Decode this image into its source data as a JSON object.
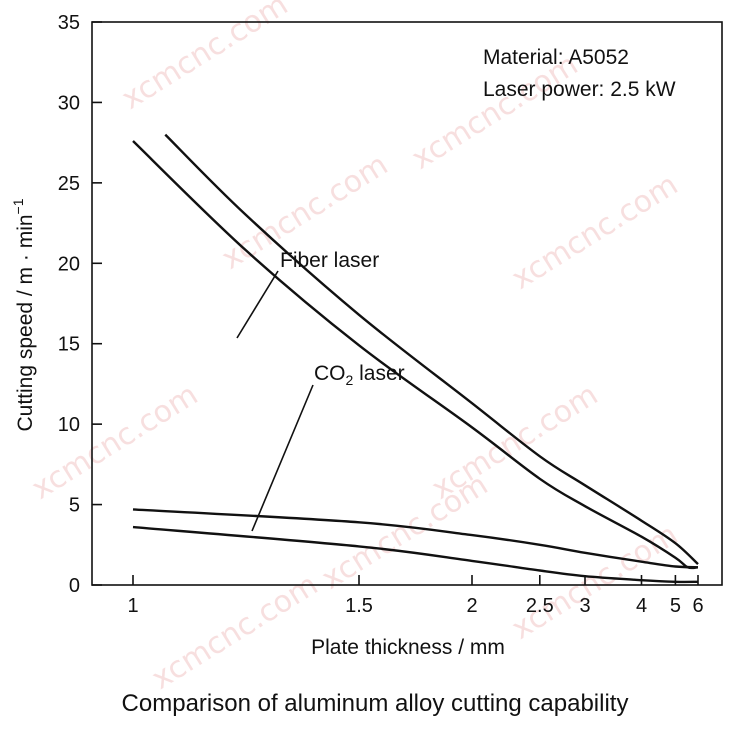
{
  "chart_data": {
    "type": "line",
    "title": "Comparison of aluminum alloy cutting capability",
    "xlabel": "Plate thickness / mm",
    "ylabel_main": "Cutting speed / m · min",
    "ylabel_sup": "−1",
    "x_tick_labels": [
      "1",
      "1.5",
      "2",
      "2.5",
      "3",
      "4",
      "5",
      "6"
    ],
    "x_tick_values": [
      1,
      1.5,
      2,
      2.5,
      3,
      4,
      5,
      6
    ],
    "x_scale": "reciprocal",
    "y_tick_labels": [
      "0",
      "5",
      "10",
      "15",
      "20",
      "25",
      "30",
      "35"
    ],
    "ylim": [
      0,
      35
    ],
    "grid": false,
    "annotations": {
      "material": "Material:  A5052",
      "power": "Laser power:  2.5 kW"
    },
    "series": [
      {
        "name": "Fiber laser",
        "label_main": "Fiber laser",
        "band": [
          {
            "x": [
              1.0,
              1.2,
              1.5,
              2.0,
              2.5,
              3.0,
              4.0,
              5.0,
              5.5,
              6.0
            ],
            "y": [
              27.6,
              20.8,
              14.9,
              9.8,
              6.6,
              4.9,
              3.0,
              1.7,
              1.1,
              1.1
            ]
          },
          {
            "x": [
              1.05,
              1.2,
              1.5,
              2.0,
              2.5,
              3.0,
              4.0,
              5.0,
              6.0
            ],
            "y": [
              28.0,
              23.0,
              16.8,
              11.3,
              8.0,
              6.2,
              4.0,
              2.6,
              1.3
            ]
          }
        ]
      },
      {
        "name": "CO2 laser",
        "label_main": "CO",
        "label_sub": "2",
        "label_tail": " laser",
        "band": [
          {
            "x": [
              1.0,
              1.5,
              2.0,
              2.5,
              3.0,
              4.0,
              5.0,
              6.0
            ],
            "y": [
              3.6,
              2.4,
              1.5,
              0.9,
              0.55,
              0.3,
              0.2,
              0.2
            ]
          },
          {
            "x": [
              1.0,
              1.5,
              2.0,
              2.5,
              3.0,
              4.0,
              5.0,
              6.0
            ],
            "y": [
              4.7,
              3.9,
              3.1,
              2.5,
              2.0,
              1.45,
              1.15,
              1.1
            ]
          }
        ]
      }
    ]
  },
  "watermark_text": "xcmcnc.com"
}
